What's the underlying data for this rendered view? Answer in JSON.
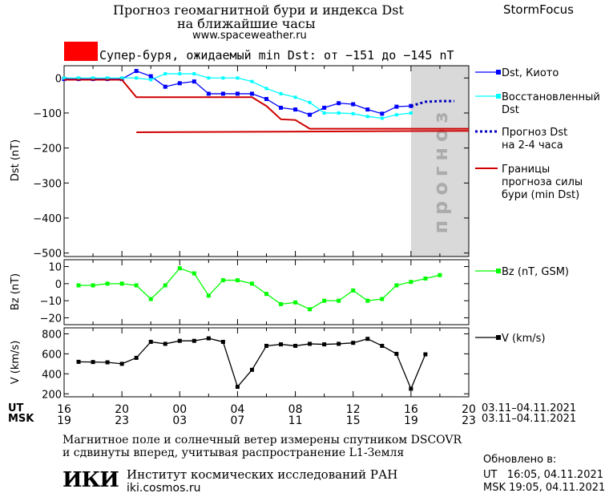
{
  "header": {
    "title_line1": "Прогноз геомагнитной бури и индекса Dst",
    "title_line2": "на ближайшие часы",
    "url": "www.spaceweather.ru",
    "brand": "StormFocus",
    "storm_label": "Супер-буря, ожидаемый min Dst: от −151 до −145 nT",
    "storm_color": "#ff0000"
  },
  "chart_data": [
    {
      "type": "line",
      "ylabel": "Dst (nT)",
      "ylim": [
        -510,
        35
      ],
      "yticks": [
        0,
        -100,
        -200,
        -300,
        -400,
        -500
      ],
      "xlim": [
        16,
        44
      ],
      "forecast_band_label": "прогноз",
      "legend_position": "right",
      "series": [
        {
          "name": "Dst, Киото",
          "color": "#0000ff",
          "points": [
            [
              16,
              -3
            ],
            [
              17,
              -3
            ],
            [
              18,
              -3
            ],
            [
              19,
              -3
            ],
            [
              20,
              -3
            ],
            [
              21,
              20
            ],
            [
              22,
              5
            ],
            [
              23,
              -25
            ],
            [
              24,
              -15
            ],
            [
              25,
              -10
            ],
            [
              26,
              -45
            ],
            [
              27,
              -45
            ],
            [
              28,
              -45
            ],
            [
              29,
              -45
            ],
            [
              30,
              -60
            ],
            [
              31,
              -85
            ],
            [
              32,
              -90
            ],
            [
              33,
              -105
            ],
            [
              34,
              -85
            ],
            [
              35,
              -72
            ],
            [
              36,
              -75
            ],
            [
              37,
              -90
            ],
            [
              38,
              -102
            ],
            [
              39,
              -82
            ],
            [
              40,
              -80
            ]
          ]
        },
        {
          "name": "Восстановленный Dst",
          "color": "#00ffff",
          "points": [
            [
              16,
              0
            ],
            [
              17,
              0
            ],
            [
              18,
              0
            ],
            [
              19,
              0
            ],
            [
              20,
              0
            ],
            [
              21,
              0
            ],
            [
              22,
              -5
            ],
            [
              23,
              12
            ],
            [
              24,
              12
            ],
            [
              25,
              12
            ],
            [
              26,
              0
            ],
            [
              27,
              0
            ],
            [
              28,
              0
            ],
            [
              29,
              -10
            ],
            [
              30,
              -30
            ],
            [
              31,
              -45
            ],
            [
              32,
              -55
            ],
            [
              33,
              -70
            ],
            [
              34,
              -100
            ],
            [
              35,
              -100
            ],
            [
              36,
              -102
            ],
            [
              37,
              -110
            ],
            [
              38,
              -115
            ],
            [
              39,
              -105
            ],
            [
              40,
              -100
            ]
          ]
        },
        {
          "name": "Прогноз Dst на 2-4 часа",
          "color": "#0000c0",
          "dashed": true,
          "points": [
            [
              40,
              -80
            ],
            [
              41,
              -68
            ],
            [
              42,
              -66
            ],
            [
              43,
              -66
            ]
          ]
        },
        {
          "name": "Границы прогноза силы бури (min Dst)",
          "color": "#d00000",
          "bounds": [
            [
              [
                16,
                -5
              ],
              [
                20,
                -5
              ],
              [
                21,
                -55
              ],
              [
                29,
                -55
              ],
              [
                30,
                -80
              ],
              [
                31,
                -118
              ],
              [
                32,
                -120
              ],
              [
                33,
                -145
              ],
              [
                44,
                -145
              ]
            ],
            [
              [
                21,
                -155
              ],
              [
                44,
                -151
              ]
            ]
          ]
        }
      ]
    },
    {
      "type": "line",
      "ylabel": "Bz (nT)",
      "ylim": [
        -24,
        14
      ],
      "yticks": [
        10,
        0,
        -10,
        -20
      ],
      "xlim": [
        16,
        44
      ],
      "series": [
        {
          "name": "Bz (nT, GSM)",
          "color": "#00ff00",
          "points": [
            [
              17,
              -1
            ],
            [
              18,
              -1
            ],
            [
              19,
              0
            ],
            [
              20,
              0
            ],
            [
              21,
              -1
            ],
            [
              22,
              -9
            ],
            [
              23,
              -1
            ],
            [
              24,
              9
            ],
            [
              25,
              6
            ],
            [
              26,
              -7
            ],
            [
              27,
              2
            ],
            [
              28,
              2
            ],
            [
              29,
              0
            ],
            [
              30,
              -6
            ],
            [
              31,
              -12
            ],
            [
              32,
              -11
            ],
            [
              33,
              -15
            ],
            [
              34,
              -10
            ],
            [
              35,
              -10
            ],
            [
              36,
              -4
            ],
            [
              37,
              -10
            ],
            [
              38,
              -9
            ],
            [
              39,
              -1
            ],
            [
              40,
              1
            ],
            [
              41,
              3
            ],
            [
              42,
              5
            ]
          ]
        }
      ]
    },
    {
      "type": "line",
      "ylabel": "V (km/s)",
      "ylim": [
        170,
        860
      ],
      "yticks": [
        800,
        600,
        400,
        200
      ],
      "xlim": [
        16,
        44
      ],
      "series": [
        {
          "name": "V (km/s)",
          "color": "#000000",
          "points": [
            [
              17,
              520
            ],
            [
              18,
              518
            ],
            [
              19,
              515
            ],
            [
              20,
              500
            ],
            [
              21,
              560
            ],
            [
              22,
              720
            ],
            [
              23,
              700
            ],
            [
              24,
              730
            ],
            [
              25,
              730
            ],
            [
              26,
              755
            ],
            [
              27,
              720
            ],
            [
              28,
              270
            ],
            [
              29,
              440
            ],
            [
              30,
              680
            ],
            [
              31,
              695
            ],
            [
              32,
              680
            ],
            [
              33,
              700
            ],
            [
              34,
              695
            ],
            [
              35,
              700
            ],
            [
              36,
              710
            ],
            [
              37,
              750
            ],
            [
              38,
              680
            ],
            [
              39,
              600
            ],
            [
              40,
              250
            ],
            [
              41,
              595
            ]
          ]
        }
      ]
    }
  ],
  "x_axis": {
    "ut_label": "UT",
    "msk_label": "MSK",
    "ut_ticks": [
      "16",
      "20",
      "00",
      "04",
      "08",
      "12",
      "16",
      "20"
    ],
    "msk_ticks": [
      "19",
      "23",
      "03",
      "07",
      "11",
      "15",
      "19",
      "23"
    ],
    "date_range_ut": "03.11–04.11.2021",
    "date_range_msk": "03.11–04.11.2021"
  },
  "footer": {
    "note_line1": "Магнитное поле и солнечный ветер измерены спутником DSCOVR",
    "note_line2": "и сдвинуты вперед, учитывая распространение L1-Земля",
    "institute": "Институт космических исследований РАН",
    "institute_url": "iki.cosmos.ru",
    "logo_text": "ИКИ",
    "updated_label": "Обновлено в:",
    "updated_ut": "UT   16:05, 04.11.2021",
    "updated_msk": "MSK 19:05, 04.11.2021"
  }
}
